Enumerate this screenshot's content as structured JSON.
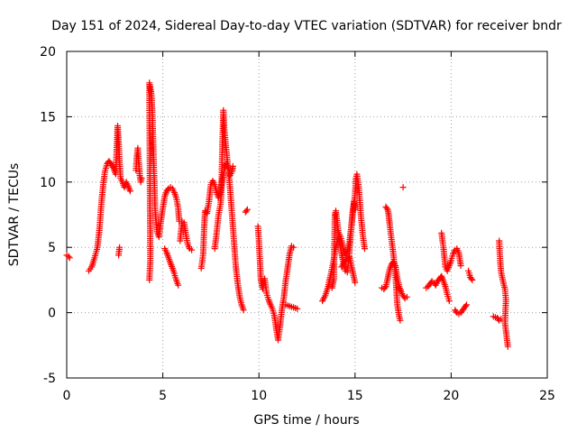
{
  "chart_data": {
    "type": "scatter",
    "title": "Day 151 of 2024, Sidereal Day-to-day VTEC variation (SDTVAR) for receiver bndr",
    "xlabel": "GPS time / hours",
    "ylabel": "SDTVAR / TECUs",
    "xlim": [
      0,
      25
    ],
    "ylim": [
      -5,
      20
    ],
    "xticks": [
      0,
      5,
      10,
      15,
      20,
      25
    ],
    "yticks": [
      -5,
      0,
      5,
      10,
      15,
      20
    ],
    "grid": true,
    "marker": "+",
    "series": [
      {
        "name": "SDTVAR",
        "color": "#ff0000",
        "segments": [
          [
            [
              0.0,
              4.4
            ],
            [
              0.1,
              4.3
            ],
            [
              0.15,
              4.2
            ]
          ],
          [
            [
              1.15,
              3.2
            ],
            [
              1.3,
              3.5
            ],
            [
              1.45,
              4.2
            ],
            [
              1.6,
              5.0
            ],
            [
              1.7,
              6.3
            ],
            [
              1.8,
              8.3
            ],
            [
              1.9,
              9.8
            ],
            [
              2.0,
              10.9
            ],
            [
              2.1,
              11.4
            ],
            [
              2.2,
              11.6
            ],
            [
              2.3,
              11.4
            ],
            [
              2.45,
              11.0
            ],
            [
              2.55,
              10.6
            ],
            [
              2.6,
              12.5
            ],
            [
              2.65,
              14.3
            ],
            [
              2.7,
              13.0
            ],
            [
              2.75,
              11.5
            ],
            [
              2.8,
              10.3
            ],
            [
              2.9,
              10.0
            ],
            [
              3.0,
              9.6
            ],
            [
              3.1,
              10.0
            ],
            [
              3.2,
              9.7
            ],
            [
              3.3,
              9.3
            ]
          ],
          [
            [
              2.7,
              4.4
            ],
            [
              2.75,
              5.0
            ]
          ],
          [
            [
              3.6,
              10.9
            ],
            [
              3.65,
              12.0
            ],
            [
              3.7,
              12.6
            ],
            [
              3.75,
              11.5
            ],
            [
              3.8,
              10.5
            ],
            [
              3.85,
              10.0
            ],
            [
              3.9,
              10.3
            ]
          ],
          [
            [
              4.3,
              2.5
            ],
            [
              4.35,
              4.0
            ],
            [
              4.3,
              17.6
            ],
            [
              4.35,
              17.2
            ],
            [
              4.4,
              16.8
            ],
            [
              4.45,
              15.5
            ],
            [
              4.5,
              13.0
            ],
            [
              4.55,
              10.5
            ],
            [
              4.6,
              7.8
            ],
            [
              4.7,
              6.2
            ],
            [
              4.8,
              5.8
            ],
            [
              4.9,
              7.0
            ],
            [
              5.0,
              8.0
            ],
            [
              5.1,
              8.9
            ],
            [
              5.2,
              9.3
            ],
            [
              5.3,
              9.5
            ],
            [
              5.4,
              9.6
            ],
            [
              5.5,
              9.5
            ],
            [
              5.6,
              9.2
            ],
            [
              5.7,
              8.8
            ],
            [
              5.8,
              8.0
            ],
            [
              5.85,
              7.0
            ]
          ],
          [
            [
              5.1,
              4.9
            ],
            [
              5.2,
              4.6
            ],
            [
              5.3,
              4.2
            ],
            [
              5.4,
              3.8
            ],
            [
              5.5,
              3.4
            ],
            [
              5.6,
              3.0
            ],
            [
              5.7,
              2.5
            ],
            [
              5.8,
              2.1
            ]
          ],
          [
            [
              5.9,
              5.5
            ],
            [
              6.0,
              7.0
            ],
            [
              6.1,
              6.9
            ],
            [
              6.2,
              6.0
            ],
            [
              6.3,
              5.2
            ],
            [
              6.4,
              4.9
            ],
            [
              6.5,
              4.8
            ]
          ],
          [
            [
              7.0,
              3.4
            ],
            [
              7.1,
              4.5
            ],
            [
              7.15,
              6.5
            ],
            [
              7.2,
              7.8
            ],
            [
              7.3,
              7.6
            ],
            [
              7.4,
              8.5
            ],
            [
              7.5,
              9.8
            ],
            [
              7.6,
              10.1
            ],
            [
              7.7,
              9.8
            ],
            [
              7.8,
              9.2
            ],
            [
              7.9,
              8.8
            ],
            [
              8.0,
              9.3
            ],
            [
              8.1,
              10.2
            ],
            [
              8.2,
              11.0
            ],
            [
              8.3,
              11.4
            ],
            [
              8.4,
              11.0
            ],
            [
              8.5,
              10.5
            ],
            [
              8.6,
              10.8
            ],
            [
              8.65,
              11.2
            ]
          ],
          [
            [
              7.7,
              4.9
            ],
            [
              7.8,
              6.1
            ],
            [
              7.9,
              7.5
            ],
            [
              8.0,
              8.3
            ],
            [
              8.05,
              9.5
            ],
            [
              8.1,
              13.0
            ],
            [
              8.15,
              15.5
            ],
            [
              8.2,
              14.0
            ],
            [
              8.3,
              12.5
            ],
            [
              8.4,
              11.0
            ],
            [
              8.5,
              9.5
            ],
            [
              8.6,
              7.5
            ],
            [
              8.7,
              5.5
            ],
            [
              8.8,
              3.5
            ],
            [
              8.9,
              2.2
            ],
            [
              9.0,
              1.2
            ],
            [
              9.1,
              0.6
            ],
            [
              9.2,
              0.2
            ]
          ],
          [
            [
              9.3,
              7.7
            ],
            [
              9.4,
              7.9
            ]
          ],
          [
            [
              9.95,
              6.6
            ],
            [
              10.0,
              5.5
            ],
            [
              10.05,
              4.0
            ],
            [
              10.1,
              2.5
            ],
            [
              10.2,
              1.8
            ],
            [
              10.3,
              2.6
            ],
            [
              10.4,
              1.5
            ],
            [
              10.5,
              1.0
            ],
            [
              10.6,
              0.6
            ],
            [
              10.7,
              0.3
            ],
            [
              10.8,
              -0.2
            ],
            [
              10.9,
              -1.2
            ],
            [
              11.0,
              -2.1
            ],
            [
              11.1,
              -1.0
            ],
            [
              11.2,
              0.3
            ],
            [
              11.3,
              1.2
            ],
            [
              11.4,
              2.5
            ],
            [
              11.5,
              3.5
            ],
            [
              11.6,
              4.5
            ],
            [
              11.7,
              5.1
            ],
            [
              11.8,
              5.0
            ]
          ],
          [
            [
              11.4,
              0.6
            ],
            [
              11.6,
              0.5
            ],
            [
              11.8,
              0.4
            ],
            [
              12.0,
              0.3
            ]
          ],
          [
            [
              13.3,
              0.9
            ],
            [
              13.45,
              1.3
            ],
            [
              13.6,
              2.0
            ],
            [
              13.75,
              3.0
            ],
            [
              13.9,
              4.1
            ],
            [
              14.0,
              5.0
            ],
            [
              14.1,
              5.6
            ],
            [
              14.2,
              6.0
            ],
            [
              14.3,
              5.5
            ],
            [
              14.4,
              4.8
            ],
            [
              14.5,
              4.4
            ],
            [
              14.6,
              4.7
            ],
            [
              14.7,
              5.3
            ],
            [
              14.8,
              6.5
            ],
            [
              14.9,
              7.8
            ],
            [
              15.0,
              9.0
            ],
            [
              15.05,
              10.3
            ],
            [
              15.1,
              10.6
            ],
            [
              15.2,
              9.5
            ],
            [
              15.3,
              7.5
            ],
            [
              15.4,
              6.0
            ],
            [
              15.5,
              4.9
            ]
          ],
          [
            [
              13.8,
              1.9
            ],
            [
              13.9,
              2.6
            ],
            [
              13.95,
              7.4
            ],
            [
              14.0,
              7.8
            ],
            [
              14.1,
              6.6
            ],
            [
              14.2,
              5.4
            ],
            [
              14.3,
              4.5
            ],
            [
              14.4,
              3.8
            ],
            [
              14.5,
              3.2
            ],
            [
              14.6,
              3.1
            ],
            [
              14.7,
              4.5
            ],
            [
              14.8,
              6.5
            ],
            [
              14.9,
              8.0
            ],
            [
              14.95,
              8.5
            ],
            [
              15.0,
              7.9
            ]
          ],
          [
            [
              14.3,
              3.5
            ],
            [
              14.5,
              4.0
            ],
            [
              14.7,
              4.3
            ],
            [
              14.9,
              3.0
            ],
            [
              15.0,
              2.3
            ]
          ],
          [
            [
              16.4,
              1.9
            ],
            [
              16.5,
              1.8
            ],
            [
              16.6,
              2.0
            ],
            [
              16.7,
              2.6
            ],
            [
              16.8,
              3.3
            ],
            [
              16.9,
              3.7
            ],
            [
              17.0,
              3.9
            ],
            [
              17.1,
              3.6
            ],
            [
              17.2,
              2.6
            ],
            [
              17.3,
              2.0
            ],
            [
              17.4,
              1.6
            ],
            [
              17.5,
              1.3
            ],
            [
              17.6,
              1.1
            ],
            [
              17.7,
              1.2
            ]
          ],
          [
            [
              16.6,
              8.1
            ],
            [
              16.7,
              7.9
            ],
            [
              16.75,
              7.5
            ],
            [
              16.8,
              6.8
            ],
            [
              16.9,
              5.6
            ],
            [
              17.0,
              4.4
            ],
            [
              17.1,
              3.0
            ],
            [
              17.15,
              1.8
            ],
            [
              17.2,
              0.6
            ],
            [
              17.3,
              -0.3
            ],
            [
              17.35,
              -0.6
            ]
          ],
          [
            [
              17.5,
              9.6
            ]
          ],
          [
            [
              18.7,
              1.9
            ],
            [
              18.8,
              2.0
            ],
            [
              18.9,
              2.2
            ],
            [
              19.0,
              2.4
            ],
            [
              19.1,
              2.3
            ],
            [
              19.2,
              2.1
            ],
            [
              19.3,
              2.4
            ],
            [
              19.4,
              2.6
            ],
            [
              19.5,
              2.8
            ],
            [
              19.6,
              2.4
            ],
            [
              19.7,
              2.0
            ],
            [
              19.8,
              1.4
            ],
            [
              19.9,
              0.9
            ]
          ],
          [
            [
              19.5,
              6.1
            ],
            [
              19.55,
              5.5
            ],
            [
              19.6,
              5.0
            ],
            [
              19.7,
              3.5
            ],
            [
              19.8,
              3.2
            ],
            [
              19.9,
              3.6
            ],
            [
              20.0,
              4.0
            ],
            [
              20.1,
              4.5
            ],
            [
              20.2,
              4.8
            ],
            [
              20.3,
              4.9
            ],
            [
              20.4,
              4.6
            ],
            [
              20.5,
              3.6
            ]
          ],
          [
            [
              20.2,
              0.2
            ],
            [
              20.3,
              0.0
            ],
            [
              20.4,
              -0.1
            ],
            [
              20.5,
              0.0
            ],
            [
              20.6,
              0.2
            ],
            [
              20.7,
              0.4
            ],
            [
              20.8,
              0.6
            ]
          ],
          [
            [
              20.9,
              3.2
            ],
            [
              21.0,
              2.7
            ],
            [
              21.1,
              2.5
            ]
          ],
          [
            [
              22.2,
              -0.3
            ],
            [
              22.4,
              -0.4
            ],
            [
              22.5,
              -0.6
            ],
            [
              22.6,
              -0.5
            ]
          ],
          [
            [
              22.5,
              5.5
            ],
            [
              22.55,
              4.0
            ],
            [
              22.6,
              3.1
            ],
            [
              22.7,
              2.4
            ],
            [
              22.8,
              1.8
            ],
            [
              22.85,
              1.0
            ],
            [
              22.8,
              -0.8
            ],
            [
              22.85,
              -1.4
            ],
            [
              22.9,
              -2.0
            ],
            [
              22.95,
              -2.6
            ]
          ]
        ]
      }
    ]
  }
}
